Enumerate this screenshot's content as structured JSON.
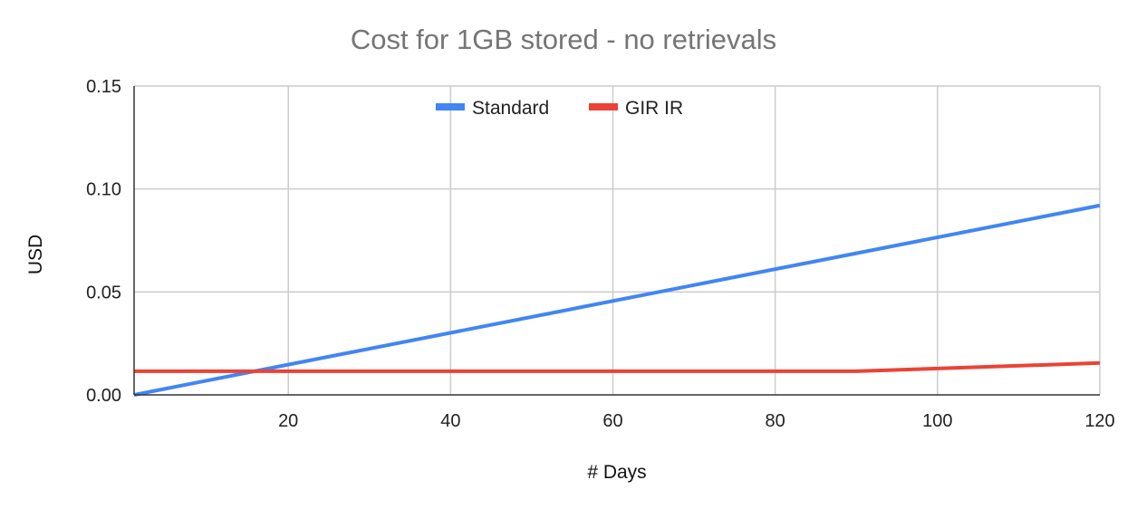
{
  "chart_data": {
    "type": "line",
    "title": "Cost for 1GB stored - no retrievals",
    "xlabel": "# Days",
    "ylabel": "USD",
    "xlim": [
      1,
      120
    ],
    "ylim": [
      0,
      0.15
    ],
    "x_ticks": [
      20,
      40,
      60,
      80,
      100,
      120
    ],
    "x_tick_labels": [
      "20",
      "40",
      "60",
      "80",
      "100",
      "120"
    ],
    "y_ticks": [
      0,
      0.05,
      0.1,
      0.15
    ],
    "y_tick_labels": [
      "0.00",
      "0.05",
      "0.10",
      "0.15"
    ],
    "grid": true,
    "legend_position": "top-center",
    "series": [
      {
        "name": "Standard",
        "color": "#4285F4",
        "points": [
          [
            1,
            0.0
          ],
          [
            120,
            0.092
          ]
        ]
      },
      {
        "name": "GIR IR",
        "color": "#EA4335",
        "points": [
          [
            1,
            0.0115
          ],
          [
            90,
            0.0115
          ],
          [
            120,
            0.0155
          ]
        ]
      }
    ]
  }
}
